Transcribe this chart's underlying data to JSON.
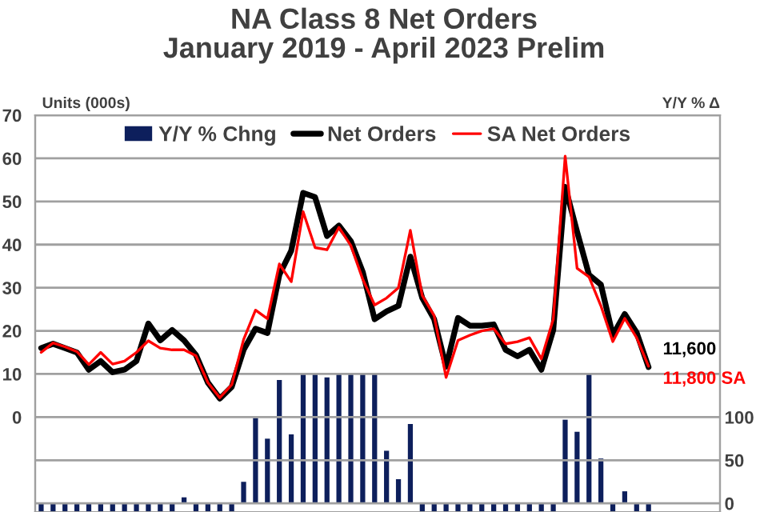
{
  "chart_data": {
    "type": "line",
    "title": "NA Class 8 Net Orders\nJanuary 2019 - April 2023 Prelim",
    "ylabel": "Units (000s)",
    "y2label": "Y/Y % Δ",
    "categories": [
      null,
      null,
      null,
      null,
      null,
      null,
      null,
      null,
      null,
      null,
      null,
      null,
      null,
      null,
      null,
      null,
      null,
      null,
      null,
      null,
      null,
      null,
      null,
      null,
      null,
      null,
      null,
      null,
      null,
      null,
      null,
      null,
      null,
      null,
      null,
      null,
      null,
      null,
      null,
      null,
      null,
      null,
      null,
      null,
      null,
      null,
      null,
      null,
      null,
      null,
      null,
      null
    ],
    "series": [
      {
        "name": "Y/Y % Chng",
        "type": "bar",
        "axis": "y2",
        "color": "#0d1f5c",
        "values": [
          -10,
          -10,
          -10,
          -10,
          -10,
          -10,
          -10,
          -10,
          -10,
          -10,
          -10,
          -10,
          7,
          -10,
          -10,
          -10,
          -10,
          25,
          99,
          75,
          143,
          80,
          150,
          150,
          146,
          150,
          150,
          150,
          150,
          61,
          28,
          92,
          -10,
          -10,
          -10,
          -10,
          -10,
          -10,
          -10,
          -10,
          -10,
          -10,
          -10,
          -10,
          97,
          83,
          150,
          52,
          -10,
          14,
          -10,
          -10
        ]
      },
      {
        "name": "Net Orders",
        "color": "#000000",
        "values": [
          16,
          17,
          16,
          15,
          11,
          13,
          10.4,
          11,
          13,
          21.7,
          17.8,
          20.2,
          17.8,
          14.4,
          8,
          4.3,
          7,
          15.6,
          20.5,
          19.5,
          33,
          38.6,
          52,
          51,
          42,
          44.4,
          40.8,
          33.7,
          22.7,
          24.5,
          25.8,
          37.2,
          27.6,
          22.7,
          11.7,
          23,
          21.2,
          21.2,
          21.5,
          15.6,
          14.1,
          15.6,
          11,
          20.2,
          53.4,
          43,
          33,
          30.7,
          19,
          23.9,
          19.6,
          11.6
        ]
      },
      {
        "name": "SA Net Orders",
        "color": "#ff0000",
        "values": [
          15,
          17.2,
          16.3,
          15.2,
          12.2,
          15,
          12.3,
          13,
          15,
          17.7,
          16,
          15.6,
          15.6,
          14.2,
          8,
          4.5,
          7.5,
          18,
          24.8,
          22.8,
          35.5,
          31.4,
          47.6,
          39.3,
          38.8,
          44,
          39.8,
          32,
          26,
          27.6,
          30,
          43.3,
          28.2,
          23.5,
          9.2,
          17.8,
          19,
          20,
          20.5,
          17,
          17.5,
          18.4,
          13.5,
          22.7,
          60.5,
          34.5,
          32.5,
          25.8,
          17.5,
          22.9,
          18.4,
          11.8
        ]
      }
    ],
    "ylim": [
      -22,
      70
    ],
    "yticks": [
      {
        "value": -20,
        "label": null
      },
      {
        "value": -10,
        "label": null
      },
      0,
      10,
      20,
      30,
      40,
      50,
      60,
      70
    ],
    "y2lim": [
      -10,
      450
    ],
    "y2ticks": [
      0,
      50,
      100
    ],
    "annotations": [
      "11,600",
      "11,800 SA"
    ],
    "grid": "y",
    "legend": "top"
  }
}
